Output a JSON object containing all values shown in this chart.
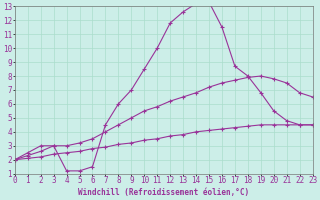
{
  "xlabel": "Windchill (Refroidissement éolien,°C)",
  "background_color": "#cceee8",
  "grid_color": "#aaddcc",
  "line_color": "#993399",
  "xlim": [
    0,
    23
  ],
  "ylim": [
    1,
    13
  ],
  "xticks": [
    0,
    1,
    2,
    3,
    4,
    5,
    6,
    7,
    8,
    9,
    10,
    11,
    12,
    13,
    14,
    15,
    16,
    17,
    18,
    19,
    20,
    21,
    22,
    23
  ],
  "yticks": [
    1,
    2,
    3,
    4,
    5,
    6,
    7,
    8,
    9,
    10,
    11,
    12,
    13
  ],
  "curve1_x": [
    0,
    1,
    2,
    3,
    4,
    5,
    6,
    7,
    8,
    9,
    10,
    11,
    12,
    13,
    14,
    15,
    16,
    17,
    18,
    19,
    20,
    21,
    22,
    23
  ],
  "curve1_y": [
    2.0,
    2.1,
    2.2,
    2.4,
    2.5,
    2.6,
    2.8,
    2.9,
    3.1,
    3.2,
    3.4,
    3.5,
    3.7,
    3.8,
    4.0,
    4.1,
    4.2,
    4.3,
    4.4,
    4.5,
    4.5,
    4.5,
    4.5,
    4.5
  ],
  "curve2_x": [
    0,
    1,
    2,
    3,
    4,
    5,
    6,
    7,
    8,
    9,
    10,
    11,
    12,
    13,
    14,
    15,
    16,
    17,
    18,
    19,
    20,
    21,
    22,
    23
  ],
  "curve2_y": [
    2.0,
    2.3,
    2.6,
    3.0,
    3.0,
    3.2,
    3.5,
    4.0,
    4.5,
    5.0,
    5.5,
    5.8,
    6.2,
    6.5,
    6.8,
    7.2,
    7.5,
    7.7,
    7.9,
    8.0,
    7.8,
    7.5,
    6.8,
    6.5
  ],
  "curve3_x": [
    0,
    1,
    2,
    3,
    4,
    5,
    6,
    7,
    8,
    9,
    10,
    11,
    12,
    13,
    14,
    15,
    16,
    17,
    18,
    19,
    20,
    21,
    22,
    23
  ],
  "curve3_y": [
    2.0,
    2.5,
    3.0,
    3.0,
    1.2,
    1.2,
    1.5,
    4.5,
    6.0,
    7.0,
    8.5,
    10.0,
    11.8,
    12.6,
    13.2,
    13.3,
    11.5,
    8.7,
    8.0,
    6.8,
    5.5,
    4.8,
    4.5,
    4.5
  ],
  "tick_fontsize": 5.5,
  "label_fontsize": 5.5,
  "marker": "+"
}
